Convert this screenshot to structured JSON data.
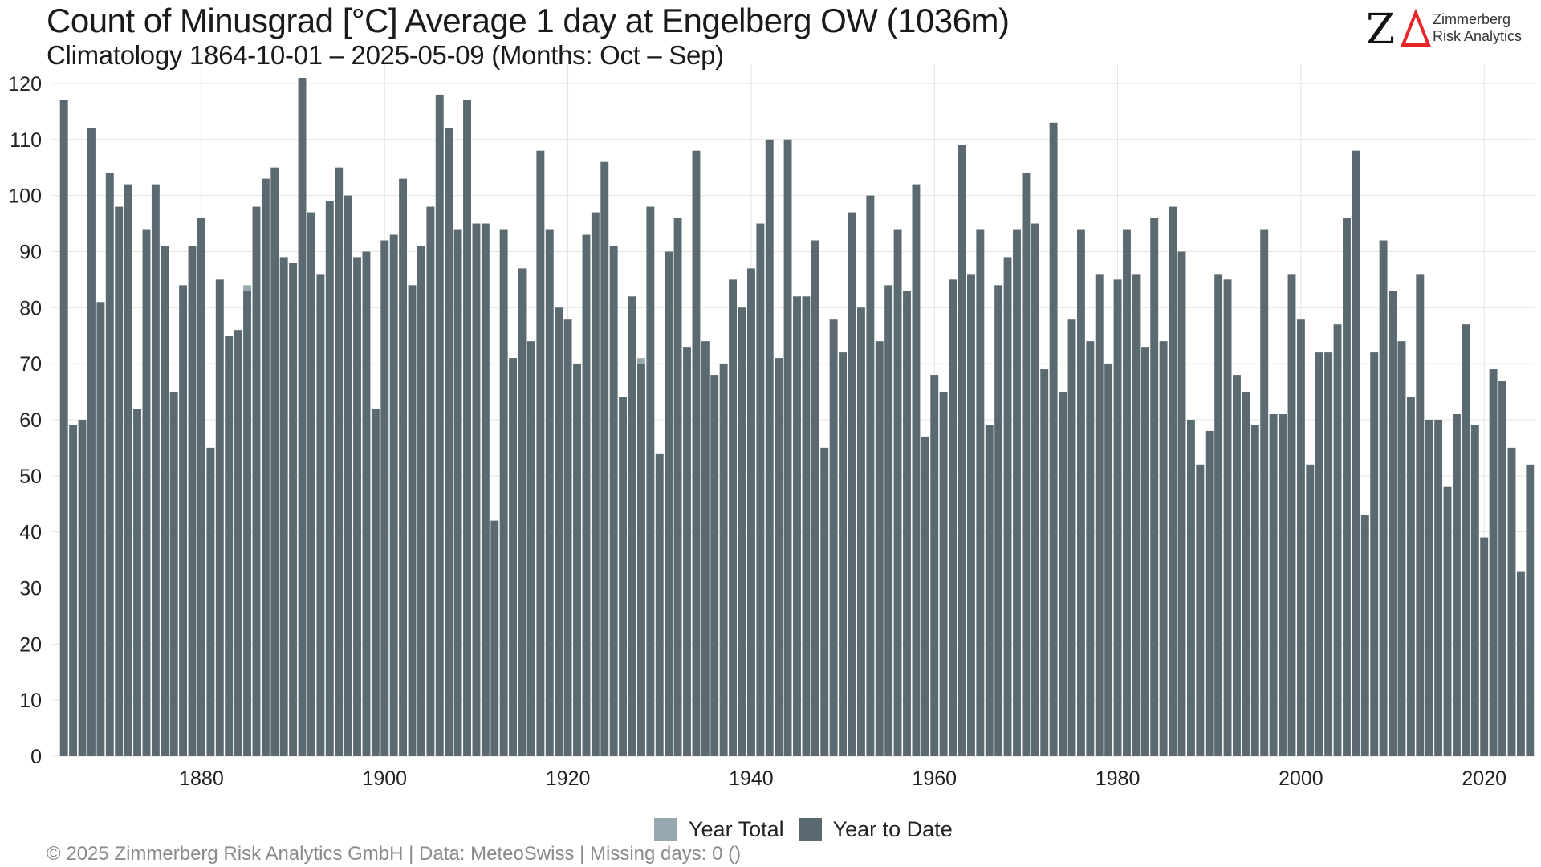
{
  "header": {
    "title": "Count of Minusgrad [°C] Average 1 day at Engelberg  OW (1036m)",
    "subtitle": "Climatology 1864-10-01 – 2025-05-09 (Months: Oct – Sep)"
  },
  "logo": {
    "mark": "ZΔ",
    "line1": "Zimmerberg",
    "line2": "Risk Analytics",
    "z_color": "#111111",
    "delta_color": "#e8262a"
  },
  "legend": {
    "year_total_label": "Year Total",
    "year_to_date_label": "Year to Date",
    "placement": "bottom"
  },
  "footer": {
    "text": "©  2025 Zimmerberg Risk Analytics GmbH | Data: MeteoSwiss | Missing days: 0 ()"
  },
  "colors": {
    "year_total": "#97a9ae",
    "year_to_date": "#5a6a70",
    "grid": "#e3e3e3",
    "axis_text": "#222222"
  },
  "chart_data": {
    "type": "bar",
    "x": [
      1865,
      1866,
      1867,
      1868,
      1869,
      1870,
      1871,
      1872,
      1873,
      1874,
      1875,
      1876,
      1877,
      1878,
      1879,
      1880,
      1881,
      1882,
      1883,
      1884,
      1885,
      1886,
      1887,
      1888,
      1889,
      1890,
      1891,
      1892,
      1893,
      1894,
      1895,
      1896,
      1897,
      1898,
      1899,
      1900,
      1901,
      1902,
      1903,
      1904,
      1905,
      1906,
      1907,
      1908,
      1909,
      1910,
      1911,
      1912,
      1913,
      1914,
      1915,
      1916,
      1917,
      1918,
      1919,
      1920,
      1921,
      1922,
      1923,
      1924,
      1925,
      1926,
      1927,
      1928,
      1929,
      1930,
      1931,
      1932,
      1933,
      1934,
      1935,
      1936,
      1937,
      1938,
      1939,
      1940,
      1941,
      1942,
      1943,
      1944,
      1945,
      1946,
      1947,
      1948,
      1949,
      1950,
      1951,
      1952,
      1953,
      1954,
      1955,
      1956,
      1957,
      1958,
      1959,
      1960,
      1961,
      1962,
      1963,
      1964,
      1965,
      1966,
      1967,
      1968,
      1969,
      1970,
      1971,
      1972,
      1973,
      1974,
      1975,
      1976,
      1977,
      1978,
      1979,
      1980,
      1981,
      1982,
      1983,
      1984,
      1985,
      1986,
      1987,
      1988,
      1989,
      1990,
      1991,
      1992,
      1993,
      1994,
      1995,
      1996,
      1997,
      1998,
      1999,
      2000,
      2001,
      2002,
      2003,
      2004,
      2005,
      2006,
      2007,
      2008,
      2009,
      2010,
      2011,
      2012,
      2013,
      2014,
      2015,
      2016,
      2017,
      2018,
      2019,
      2020,
      2021,
      2022,
      2023,
      2024,
      2025
    ],
    "series": [
      {
        "name": "Year Total",
        "values": [
          117,
          59,
          60,
          112,
          81,
          104,
          98,
          102,
          62,
          94,
          102,
          91,
          65,
          84,
          91,
          96,
          55,
          85,
          75,
          76,
          84,
          98,
          103,
          105,
          89,
          88,
          121,
          97,
          86,
          99,
          105,
          100,
          89,
          90,
          62,
          92,
          93,
          103,
          84,
          91,
          98,
          118,
          112,
          94,
          117,
          95,
          95,
          42,
          94,
          71,
          87,
          74,
          108,
          94,
          80,
          78,
          70,
          93,
          97,
          106,
          91,
          64,
          82,
          71,
          98,
          54,
          90,
          96,
          73,
          108,
          74,
          68,
          70,
          85,
          80,
          87,
          95,
          110,
          71,
          110,
          82,
          82,
          92,
          55,
          78,
          72,
          97,
          80,
          100,
          74,
          84,
          94,
          83,
          102,
          57,
          68,
          65,
          85,
          109,
          86,
          94,
          59,
          84,
          89,
          94,
          104,
          95,
          69,
          113,
          65,
          78,
          94,
          74,
          86,
          70,
          85,
          94,
          86,
          73,
          96,
          74,
          98,
          90,
          60,
          52,
          58,
          86,
          85,
          68,
          65,
          59,
          94,
          61,
          61,
          86,
          78,
          52,
          72,
          72,
          77,
          96,
          108,
          43,
          72,
          92,
          83,
          74,
          64,
          86,
          60,
          60,
          48,
          61,
          77,
          59,
          39,
          69,
          67,
          55,
          33,
          null
        ]
      },
      {
        "name": "Year to Date",
        "values": [
          117,
          59,
          60,
          112,
          81,
          104,
          98,
          102,
          62,
          94,
          102,
          91,
          65,
          84,
          91,
          96,
          55,
          85,
          75,
          76,
          83,
          98,
          103,
          105,
          89,
          88,
          121,
          97,
          86,
          99,
          105,
          100,
          89,
          90,
          62,
          92,
          93,
          103,
          84,
          91,
          98,
          118,
          112,
          94,
          117,
          95,
          95,
          42,
          94,
          71,
          87,
          74,
          108,
          94,
          80,
          78,
          70,
          93,
          97,
          106,
          91,
          64,
          82,
          70,
          98,
          54,
          90,
          96,
          73,
          108,
          74,
          68,
          70,
          85,
          80,
          87,
          95,
          110,
          71,
          110,
          82,
          82,
          92,
          55,
          78,
          72,
          97,
          80,
          100,
          74,
          84,
          94,
          83,
          102,
          57,
          68,
          65,
          85,
          109,
          86,
          94,
          59,
          84,
          89,
          94,
          104,
          95,
          69,
          113,
          65,
          78,
          94,
          74,
          86,
          70,
          85,
          94,
          86,
          73,
          96,
          74,
          98,
          90,
          60,
          52,
          58,
          86,
          85,
          68,
          65,
          59,
          94,
          61,
          61,
          86,
          78,
          52,
          72,
          72,
          77,
          96,
          108,
          43,
          72,
          92,
          83,
          74,
          64,
          86,
          60,
          60,
          48,
          61,
          77,
          59,
          39,
          69,
          67,
          55,
          33,
          52
        ]
      }
    ],
    "x_ticks": [
      1880,
      1900,
      1920,
      1940,
      1960,
      1980,
      2000,
      2020
    ],
    "y_ticks": [
      0,
      10,
      20,
      30,
      40,
      50,
      60,
      70,
      80,
      90,
      100,
      110,
      120
    ],
    "ylim": [
      0,
      122
    ],
    "xlim": [
      1864.5,
      2025.5
    ],
    "grid": true
  }
}
